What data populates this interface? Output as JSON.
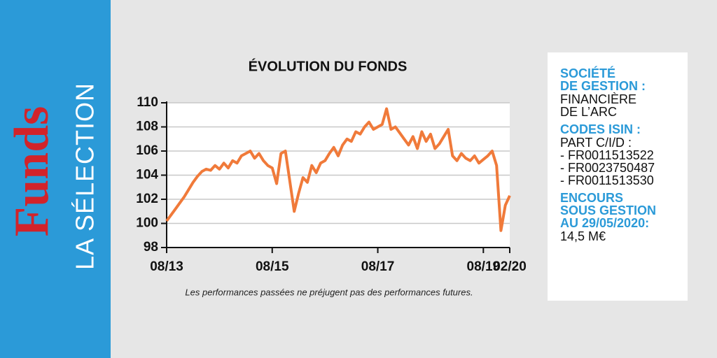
{
  "sidebar": {
    "brand": "Funds",
    "label": "LA SÉLECTION"
  },
  "chart_data": {
    "type": "line",
    "title": "ÉVOLUTION DU FONDS",
    "note": "Les performances passées ne préjugent pas des performances futures.",
    "x": [
      "08/13",
      "09/13",
      "10/13",
      "11/13",
      "12/13",
      "01/14",
      "02/14",
      "03/14",
      "04/14",
      "05/14",
      "06/14",
      "07/14",
      "08/14",
      "09/14",
      "10/14",
      "11/14",
      "12/14",
      "01/15",
      "02/15",
      "03/15",
      "04/15",
      "05/15",
      "06/15",
      "07/15",
      "08/15",
      "09/15",
      "10/15",
      "11/15",
      "12/15",
      "01/16",
      "02/16",
      "03/16",
      "04/16",
      "05/16",
      "06/16",
      "07/16",
      "08/16",
      "09/16",
      "10/16",
      "11/16",
      "12/16",
      "01/17",
      "02/17",
      "03/17",
      "04/17",
      "05/17",
      "06/17",
      "07/17",
      "08/17",
      "09/17",
      "10/17",
      "11/17",
      "12/17",
      "01/18",
      "02/18",
      "03/18",
      "04/18",
      "05/18",
      "06/18",
      "07/18",
      "08/18",
      "09/18",
      "10/18",
      "11/18",
      "12/18",
      "01/19",
      "02/19",
      "03/19",
      "04/19",
      "05/19",
      "06/19",
      "07/19",
      "08/19",
      "09/19",
      "10/19",
      "11/19",
      "12/19",
      "01/20",
      "02/20"
    ],
    "series": [
      {
        "color": "#f07a3a",
        "values": [
          100.2,
          100.7,
          101.2,
          101.7,
          102.2,
          102.8,
          103.4,
          103.9,
          104.3,
          104.5,
          104.4,
          104.8,
          104.5,
          105.0,
          104.6,
          105.2,
          105.0,
          105.6,
          105.8,
          106.0,
          105.4,
          105.8,
          105.2,
          104.8,
          104.6,
          103.3,
          105.8,
          106.0,
          103.5,
          101.0,
          102.5,
          103.8,
          103.4,
          104.8,
          104.2,
          105.0,
          105.2,
          105.8,
          106.3,
          105.6,
          106.5,
          107.0,
          106.8,
          107.6,
          107.4,
          108.0,
          108.4,
          107.8,
          108.0,
          108.2,
          109.5,
          107.8,
          108.0,
          107.5,
          107.0,
          106.5,
          107.2,
          106.2,
          107.6,
          106.8,
          107.4,
          106.2,
          106.6,
          107.2,
          107.8,
          105.6,
          105.2,
          105.8,
          105.4,
          105.2,
          105.6,
          105.0,
          105.3,
          105.6,
          106.0,
          104.8,
          99.4,
          101.5,
          102.3
        ]
      }
    ],
    "xticks": [
      "08/13",
      "08/15",
      "08/17",
      "08/19",
      "02/20"
    ],
    "ylim": [
      98,
      110
    ],
    "yticks": [
      98,
      100,
      102,
      104,
      106,
      108,
      110
    ],
    "grid": true
  },
  "info": {
    "blocks": [
      {
        "heading": [
          "SOCIÉTÉ",
          "DE GESTION :"
        ],
        "lines": [
          "FINANCIÈRE",
          "DE L’ARC"
        ]
      },
      {
        "heading": [
          "CODES ISIN :"
        ],
        "lines": [
          "PART C/I/D :",
          "- FR0011513522",
          "- FR0023750487",
          "- FR0011513530"
        ]
      },
      {
        "heading": [
          "ENCOURS",
          "SOUS GESTION",
          "AU 29/05/2020:"
        ],
        "lines": [
          "14,5  M€"
        ]
      }
    ]
  }
}
